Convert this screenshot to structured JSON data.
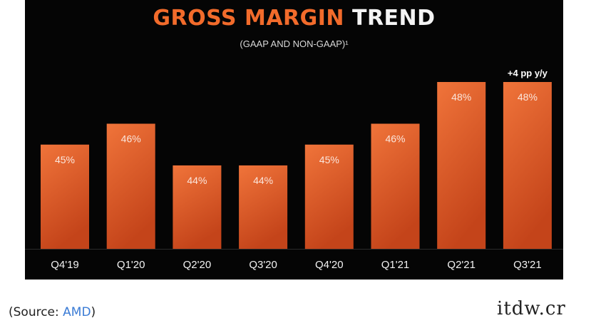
{
  "slide": {
    "title_part1": "GROSS MARGIN",
    "title_part2": "TREND",
    "subtitle": "(GAAP AND NON-GAAP)¹",
    "annotation": "+4 pp y/y"
  },
  "caption": {
    "prefix": "(Source: ",
    "link": "AMD",
    "suffix": ")"
  },
  "watermark": "itdw.cr",
  "colors": {
    "bar_top": "#f0743a",
    "bar_bottom": "#c4441a",
    "title_orange": "#f26b2b",
    "background": "#050505"
  },
  "chart_data": {
    "type": "bar",
    "title": "GROSS MARGIN TREND",
    "subtitle": "(GAAP AND NON-GAAP)¹",
    "categories": [
      "Q4'19",
      "Q1'20",
      "Q2'20",
      "Q3'20",
      "Q4'20",
      "Q1'21",
      "Q2'21",
      "Q3'21"
    ],
    "values": [
      45,
      46,
      44,
      44,
      45,
      46,
      48,
      48
    ],
    "data_labels": [
      "45%",
      "46%",
      "44%",
      "44%",
      "45%",
      "46%",
      "48%",
      "48%"
    ],
    "annotations": [
      {
        "category": "Q3'21",
        "text": "+4 pp y/y"
      }
    ],
    "unit": "%",
    "grid": false,
    "legend": "none"
  }
}
